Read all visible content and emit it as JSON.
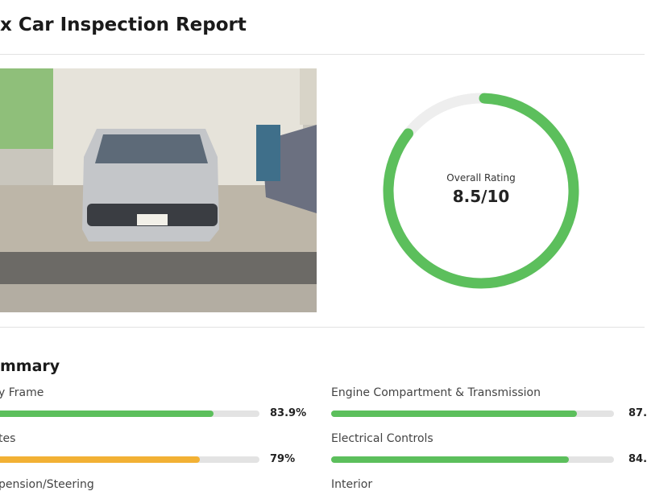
{
  "header": {
    "title": "x Car Inspection Report"
  },
  "rating": {
    "title": "Overall Rating",
    "value": 8.5,
    "max": 10,
    "label": "8.5/10",
    "color": "#5cbf5c"
  },
  "summary": {
    "title": "mmary",
    "items": [
      {
        "name": "y Frame",
        "value": 83.9,
        "value_label": "83.9%",
        "color": "#5cbf5c"
      },
      {
        "name": "Engine Compartment & Transmission",
        "value": 87,
        "value_label": "87.",
        "color": "#5cbf5c"
      },
      {
        "name": "tes",
        "value": 79,
        "value_label": "79%",
        "color": "#f2b134"
      },
      {
        "name": "Electrical Controls",
        "value": 84,
        "value_label": "84.",
        "color": "#5cbf5c"
      },
      {
        "name": "pension/Steering"
      },
      {
        "name": "Interior"
      }
    ]
  }
}
